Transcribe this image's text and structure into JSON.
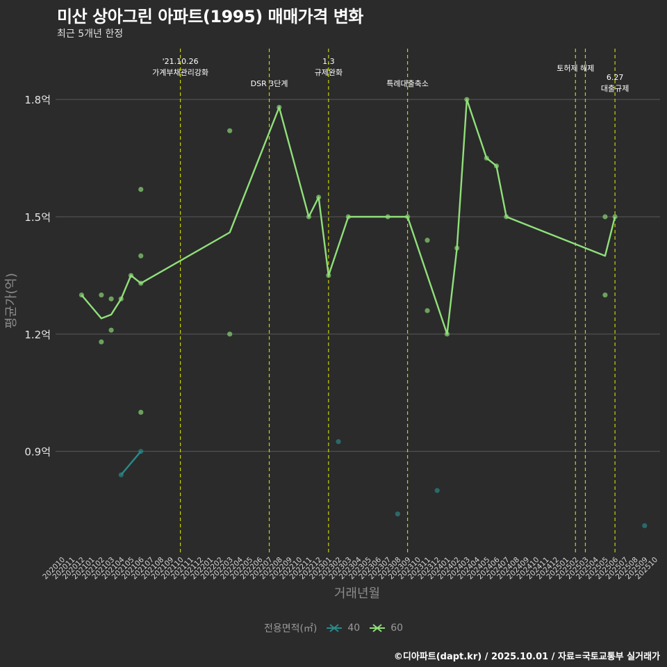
{
  "header": {
    "title": "미산 상아그린 아파트(1995) 매매가격 변화",
    "subtitle": "최근 5개년 한정"
  },
  "footer": {
    "caption": "©디아파트(dapt.kr) / 2025.10.01 / 자료=국토교통부 실거래가"
  },
  "legend": {
    "title": "전용면적(㎡)",
    "items": [
      {
        "label": "40",
        "color": "#2a8a8a"
      },
      {
        "label": "60",
        "color": "#90e07a"
      }
    ]
  },
  "chart_data": {
    "type": "line",
    "xlabel": "거래년월",
    "ylabel": "평균가(억)",
    "ylim": [
      0.64,
      1.93
    ],
    "yticks": [
      0.9,
      1.2,
      1.5,
      1.8
    ],
    "ytick_labels": [
      "0.9억",
      "1.2억",
      "1.5억",
      "1.8억"
    ],
    "categories": [
      "202010",
      "202011",
      "202012",
      "202101",
      "202102",
      "202103",
      "202104",
      "202105",
      "202106",
      "202107",
      "202108",
      "202109",
      "202110",
      "202111",
      "202112",
      "202201",
      "202202",
      "202203",
      "202204",
      "202205",
      "202206",
      "202207",
      "202208",
      "202209",
      "202210",
      "202211",
      "202212",
      "202301",
      "202302",
      "202303",
      "202304",
      "202305",
      "202306",
      "202307",
      "202308",
      "202309",
      "202310",
      "202311",
      "202312",
      "202401",
      "202402",
      "202403",
      "202404",
      "202405",
      "202406",
      "202407",
      "202408",
      "202409",
      "202410",
      "202411",
      "202412",
      "202501",
      "202502",
      "202503",
      "202504",
      "202505",
      "202506",
      "202507",
      "202508",
      "202509",
      "202510"
    ],
    "series": [
      {
        "name": "40",
        "color": "#2a8a8a",
        "line": [
          [
            "202104",
            0.84
          ],
          [
            "202106",
            0.9
          ]
        ],
        "points": [
          [
            "202104",
            0.84
          ],
          [
            "202106",
            0.9
          ],
          [
            "202302",
            0.925
          ],
          [
            "202308",
            0.74
          ],
          [
            "202312",
            0.8
          ],
          [
            "202509",
            0.71
          ]
        ]
      },
      {
        "name": "60",
        "color": "#90e07a",
        "line": [
          [
            "202012",
            1.3
          ],
          [
            "202102",
            1.24
          ],
          [
            "202103",
            1.25
          ],
          [
            "202104",
            1.29
          ],
          [
            "202105",
            1.35
          ],
          [
            "202106",
            1.33
          ],
          [
            "202203",
            1.46
          ],
          [
            "202208",
            1.78
          ],
          [
            "202211",
            1.5
          ],
          [
            "202212",
            1.55
          ],
          [
            "202301",
            1.35
          ],
          [
            "202303",
            1.5
          ],
          [
            "202307",
            1.5
          ],
          [
            "202309",
            1.5
          ],
          [
            "202401",
            1.2
          ],
          [
            "202402",
            1.42
          ],
          [
            "202403",
            1.8
          ],
          [
            "202405",
            1.65
          ],
          [
            "202406",
            1.63
          ],
          [
            "202407",
            1.5
          ],
          [
            "202505",
            1.4
          ],
          [
            "202506",
            1.5
          ]
        ],
        "points": [
          [
            "202012",
            1.3
          ],
          [
            "202102",
            1.3
          ],
          [
            "202102",
            1.18
          ],
          [
            "202103",
            1.29
          ],
          [
            "202103",
            1.21
          ],
          [
            "202104",
            1.29
          ],
          [
            "202105",
            1.35
          ],
          [
            "202106",
            1.57
          ],
          [
            "202106",
            1.4
          ],
          [
            "202106",
            1.33
          ],
          [
            "202106",
            1.0
          ],
          [
            "202203",
            1.72
          ],
          [
            "202203",
            1.2
          ],
          [
            "202208",
            1.78
          ],
          [
            "202211",
            1.5
          ],
          [
            "202212",
            1.55
          ],
          [
            "202301",
            1.35
          ],
          [
            "202303",
            1.5
          ],
          [
            "202307",
            1.5
          ],
          [
            "202309",
            1.5
          ],
          [
            "202311",
            1.44
          ],
          [
            "202311",
            1.26
          ],
          [
            "202401",
            1.2
          ],
          [
            "202402",
            1.42
          ],
          [
            "202403",
            1.8
          ],
          [
            "202405",
            1.65
          ],
          [
            "202406",
            1.63
          ],
          [
            "202407",
            1.5
          ],
          [
            "202505",
            1.5
          ],
          [
            "202505",
            1.3
          ],
          [
            "202506",
            1.5
          ]
        ]
      }
    ],
    "events": [
      {
        "month": "202110",
        "lines": [
          "'21.10.26",
          "가계부채관리강화"
        ],
        "level": 1
      },
      {
        "month": "202207",
        "lines": [
          "DSR 3단계"
        ],
        "level": 2
      },
      {
        "month": "202301",
        "lines": [
          "1.3",
          "규제완화"
        ],
        "level": 1
      },
      {
        "month": "202309",
        "lines": [
          "특례대출축소"
        ],
        "level": 2
      },
      {
        "month": "202502",
        "lines": [
          "토허제 해제"
        ],
        "level": 0
      },
      {
        "month": "202503",
        "lines": [],
        "level": 0
      },
      {
        "month": "202506",
        "lines": [
          "6.27",
          "대출규제"
        ],
        "level": 3
      }
    ]
  }
}
